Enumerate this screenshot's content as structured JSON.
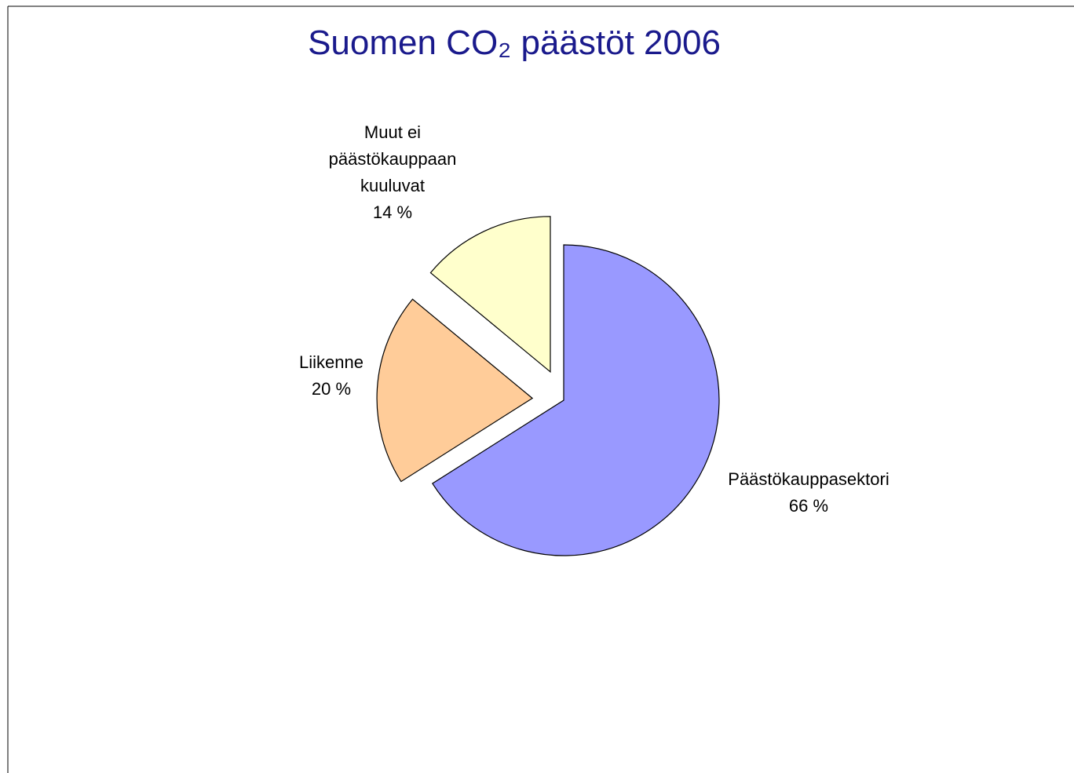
{
  "chart_data": {
    "type": "pie",
    "title": "Suomen CO₂ päästöt 2006",
    "categories": [
      "Päästökauppasektori",
      "Liikenne",
      "Muut ei päästökauppaan kuuluvat"
    ],
    "values": [
      66,
      20,
      14
    ],
    "value_labels": [
      "66 %",
      "20 %",
      "14 %"
    ],
    "colors": [
      "#9999ff",
      "#ffcc99",
      "#ffffcc"
    ],
    "exploded": [
      false,
      true,
      true
    ]
  }
}
